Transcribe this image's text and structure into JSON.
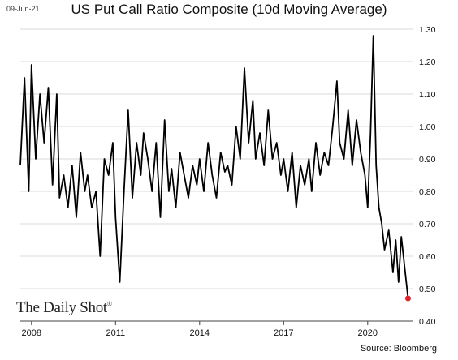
{
  "date_stamp": "09-Jun-21",
  "source": "Source: Bloomberg",
  "brand": "The Daily Shot",
  "brand_mark": "®",
  "chart_data": {
    "type": "line",
    "title": "US Put Call Ratio Composite (10d Moving Average)",
    "xlabel": "",
    "ylabel": "",
    "xlim": [
      2007.6,
      2021.6
    ],
    "ylim": [
      0.4,
      1.3
    ],
    "x_ticks": [
      2008,
      2011,
      2014,
      2017,
      2020
    ],
    "x_tick_labels": [
      "2008",
      "2011",
      "2014",
      "2017",
      "2020"
    ],
    "y_ticks": [
      0.4,
      0.5,
      0.6,
      0.7,
      0.8,
      0.9,
      1.0,
      1.1,
      1.2,
      1.3
    ],
    "y_tick_labels": [
      "0.40",
      "0.50",
      "0.60",
      "0.70",
      "0.80",
      "0.90",
      "1.00",
      "1.10",
      "1.20",
      "1.30"
    ],
    "y_axis_position": "right",
    "grid": "horizontal",
    "legend": "none",
    "line_color": "#000000",
    "marker_color": "#e0242b",
    "last_point": {
      "x": 2021.44,
      "y": 0.47
    },
    "series": [
      {
        "x": [
          2007.6,
          2007.75,
          2007.9,
          2008.0,
          2008.15,
          2008.3,
          2008.45,
          2008.6,
          2008.75,
          2008.9,
          2009.0,
          2009.15,
          2009.3,
          2009.45,
          2009.6,
          2009.75,
          2009.9,
          2010.0,
          2010.15,
          2010.3,
          2010.45,
          2010.6,
          2010.75,
          2010.9,
          2011.0,
          2011.15,
          2011.3,
          2011.45,
          2011.6,
          2011.75,
          2011.9,
          2012.0,
          2012.15,
          2012.3,
          2012.45,
          2012.6,
          2012.75,
          2012.9,
          2013.0,
          2013.15,
          2013.3,
          2013.45,
          2013.6,
          2013.75,
          2013.9,
          2014.0,
          2014.15,
          2014.3,
          2014.45,
          2014.6,
          2014.75,
          2014.9,
          2015.0,
          2015.15,
          2015.3,
          2015.45,
          2015.6,
          2015.75,
          2015.9,
          2016.0,
          2016.15,
          2016.3,
          2016.45,
          2016.6,
          2016.75,
          2016.9,
          2017.0,
          2017.15,
          2017.3,
          2017.45,
          2017.6,
          2017.75,
          2017.9,
          2018.0,
          2018.15,
          2018.3,
          2018.45,
          2018.6,
          2018.75,
          2018.9,
          2019.0,
          2019.15,
          2019.3,
          2019.45,
          2019.6,
          2019.75,
          2019.9,
          2020.0,
          2020.1,
          2020.2,
          2020.3,
          2020.4,
          2020.5,
          2020.6,
          2020.75,
          2020.9,
          2021.0,
          2021.1,
          2021.2,
          2021.3,
          2021.44
        ],
        "values": [
          0.88,
          1.15,
          0.8,
          1.19,
          0.9,
          1.1,
          0.95,
          1.12,
          0.82,
          1.1,
          0.78,
          0.85,
          0.75,
          0.88,
          0.72,
          0.92,
          0.8,
          0.85,
          0.75,
          0.8,
          0.6,
          0.9,
          0.85,
          0.95,
          0.72,
          0.52,
          0.8,
          1.05,
          0.78,
          0.95,
          0.85,
          0.98,
          0.9,
          0.8,
          0.95,
          0.72,
          1.02,
          0.8,
          0.87,
          0.75,
          0.92,
          0.85,
          0.78,
          0.88,
          0.82,
          0.9,
          0.8,
          0.95,
          0.85,
          0.78,
          0.92,
          0.86,
          0.88,
          0.82,
          1.0,
          0.9,
          1.18,
          0.95,
          1.08,
          0.9,
          0.98,
          0.88,
          1.05,
          0.9,
          0.95,
          0.85,
          0.9,
          0.8,
          0.92,
          0.75,
          0.88,
          0.82,
          0.9,
          0.8,
          0.95,
          0.85,
          0.92,
          0.88,
          1.0,
          1.14,
          0.95,
          0.9,
          1.05,
          0.88,
          1.02,
          0.92,
          0.85,
          0.75,
          0.98,
          1.28,
          0.88,
          0.75,
          0.7,
          0.62,
          0.68,
          0.55,
          0.65,
          0.52,
          0.66,
          0.58,
          0.47
        ]
      }
    ]
  }
}
